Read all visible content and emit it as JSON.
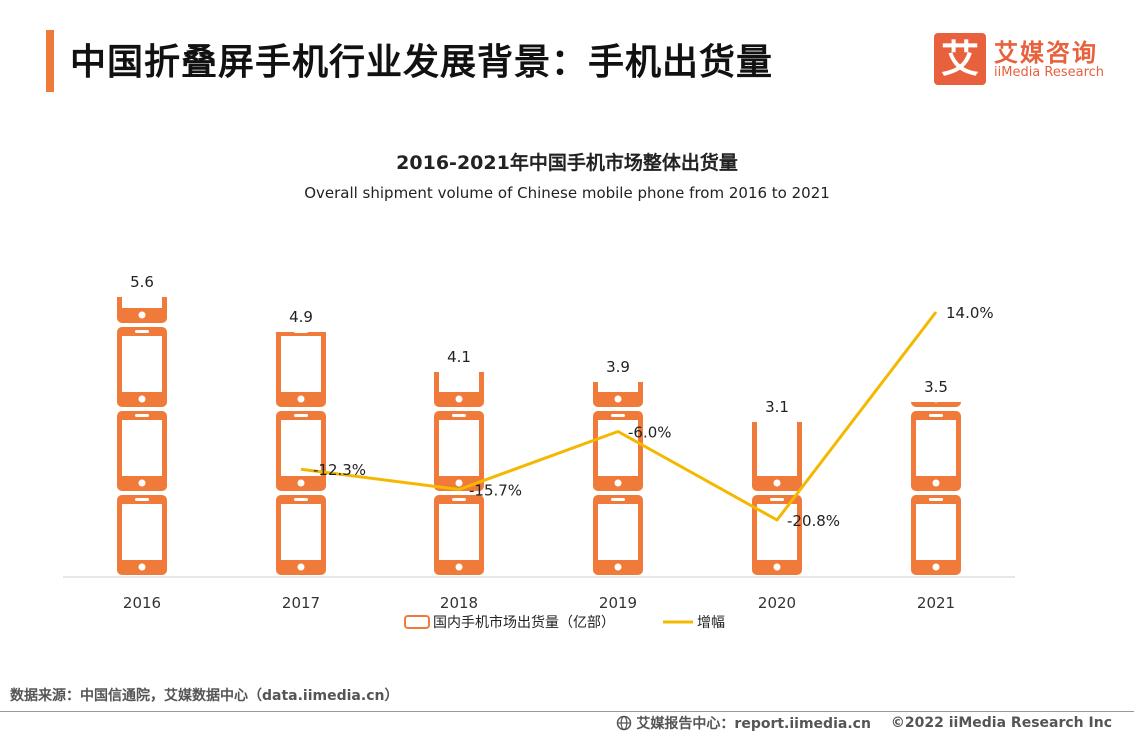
{
  "header": {
    "title": "中国折叠屏手机行业发展背景：手机出货量"
  },
  "logo": {
    "mark": "艾",
    "name_cn": "艾媒咨询",
    "name_en": "iiMedia Research"
  },
  "chart_data": {
    "type": "bar",
    "title": "2016-2021年中国手机市场整体出货量",
    "subtitle": "Overall shipment volume of Chinese mobile phone from 2016 to 2021",
    "categories": [
      "2016",
      "2017",
      "2018",
      "2019",
      "2020",
      "2021"
    ],
    "series": [
      {
        "name": "国内手机市场出货量（亿部）",
        "type": "bar",
        "values": [
          5.6,
          4.9,
          4.1,
          3.9,
          3.1,
          3.5
        ],
        "labels": [
          "5.6",
          "4.9",
          "4.1",
          "3.9",
          "3.1",
          "3.5"
        ],
        "color": "#f07a3a"
      },
      {
        "name": "增幅",
        "type": "line",
        "values": [
          null,
          -12.3,
          -15.7,
          -6.0,
          -20.8,
          14.0
        ],
        "labels": [
          "",
          "-12.3%",
          "-15.7%",
          "-6.0%",
          "-20.8%",
          "14.0%"
        ],
        "color": "#f5b800"
      }
    ],
    "ylim": [
      0,
      5.6
    ],
    "y2lim": [
      -25,
      15
    ],
    "legend_position": "bottom"
  },
  "footer": {
    "source": "数据来源：中国信通院，艾媒数据中心（data.iimedia.cn）",
    "center_label": "艾媒报告中心：report.iimedia.cn",
    "copyright": "©2022 iiMedia Research Inc"
  }
}
